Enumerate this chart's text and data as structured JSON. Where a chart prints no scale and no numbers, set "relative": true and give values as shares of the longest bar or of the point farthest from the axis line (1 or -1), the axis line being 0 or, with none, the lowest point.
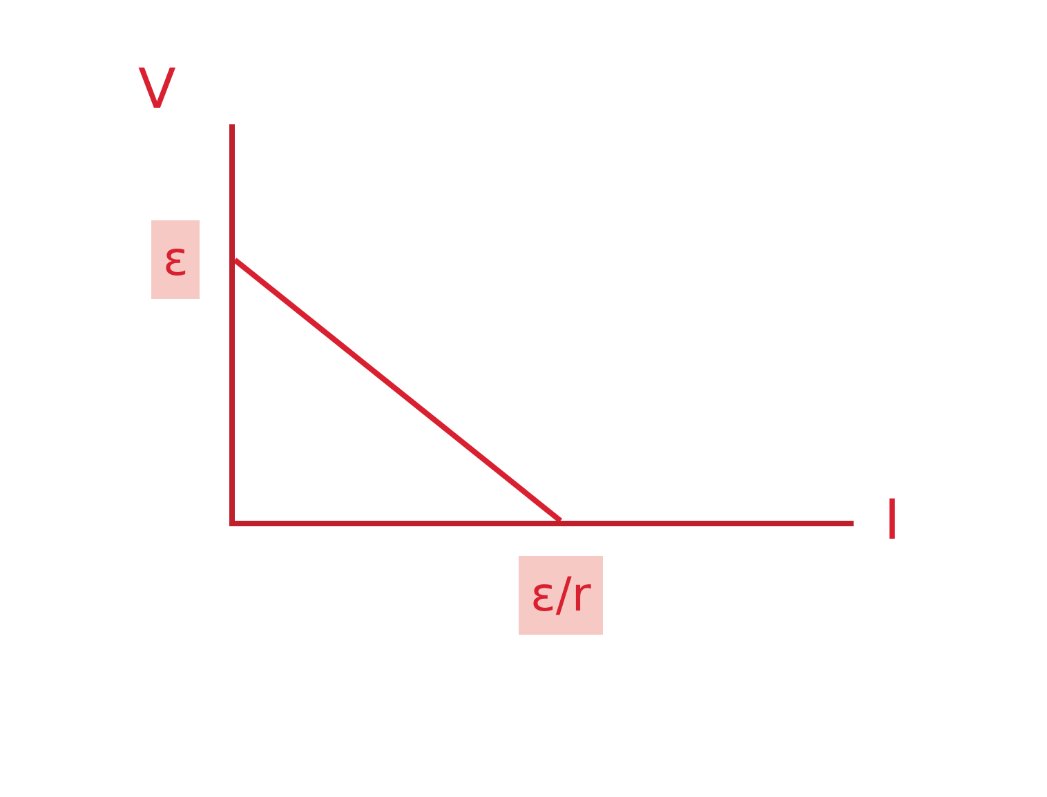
{
  "chart_data": {
    "type": "line",
    "xlabel": "I",
    "ylabel": "V",
    "relative": true,
    "categories": [
      null,
      null
    ],
    "series": [
      {
        "color": "#d92030",
        "values": [
          1,
          0
        ]
      }
    ],
    "annotations": [
      "ε",
      "ε/r"
    ],
    "marker": "none",
    "line_style": "solid"
  }
}
